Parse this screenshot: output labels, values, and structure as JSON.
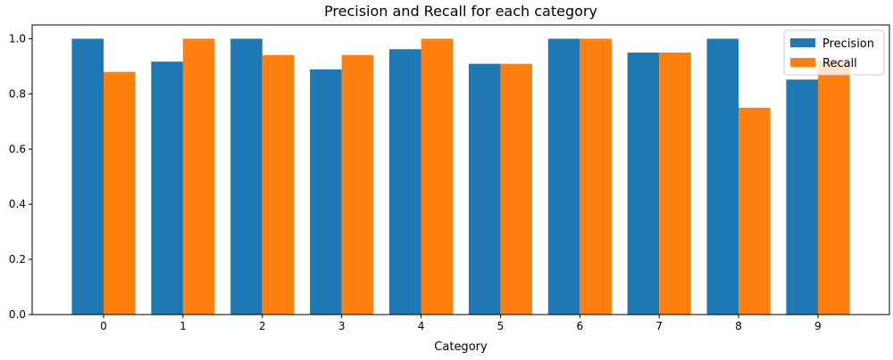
{
  "chart_data": {
    "type": "bar",
    "title": "Precision and Recall for each category",
    "xlabel": "Category",
    "ylabel": "",
    "categories": [
      "0",
      "1",
      "2",
      "3",
      "4",
      "5",
      "6",
      "7",
      "8",
      "9"
    ],
    "series": [
      {
        "name": "Precision",
        "color": "#1f77b4",
        "values": [
          1.0,
          0.917,
          1.0,
          0.889,
          0.962,
          0.909,
          1.0,
          0.95,
          1.0,
          0.852
        ]
      },
      {
        "name": "Recall",
        "color": "#ff7f0e",
        "values": [
          0.88,
          1.0,
          0.941,
          0.941,
          1.0,
          0.909,
          1.0,
          0.95,
          0.75,
          0.92
        ]
      }
    ],
    "ylim": [
      0,
      1.05
    ],
    "yticks": [
      "0.0",
      "0.2",
      "0.4",
      "0.6",
      "0.8",
      "1.0"
    ],
    "legend_position": "top-right",
    "grid": false
  }
}
